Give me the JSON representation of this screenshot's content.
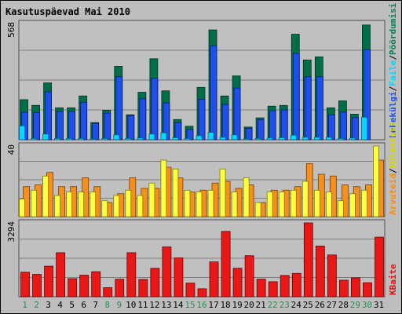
{
  "title": "Kasutuspäevad Mai 2010",
  "colors": {
    "panel_bg": "#c0c0c0",
    "grid": "#808080",
    "title_text": "#0000c0",
    "weekday": "#006400",
    "weekend": "#2e8b57",
    "kulastusi": "#006d4a",
    "lehekulgi": "#1f4fe8",
    "faile": "#00d8ff",
    "poordumisi": "#0b7a5a",
    "kulastajaid": "#f58f1e",
    "kulastajaid_legend": "#ff8c00",
    "kulastajad": "#ffff44",
    "kulastajad_legend": "#d8d800",
    "kbaite": "#e81818",
    "kbaite_legend": "#e01010",
    "separator": "#505050"
  },
  "legend": {
    "panel1": [
      "Lehekülgi",
      "/",
      "Faile",
      "/",
      "Pöördumisi"
    ],
    "panel2": [
      "Arvuteid",
      "/",
      "Külastusi"
    ],
    "panel3": [
      "KBaite"
    ]
  },
  "chart_data": [
    {
      "type": "bar",
      "title": "Kasutuspäevad Mai 2010",
      "ymax_label": "568",
      "ylim": [
        0,
        568
      ],
      "categories": [
        "1",
        "2",
        "3",
        "4",
        "5",
        "6",
        "7",
        "8",
        "9",
        "10",
        "11",
        "12",
        "13",
        "14",
        "15",
        "16",
        "17",
        "18",
        "19",
        "20",
        "21",
        "22",
        "23",
        "24",
        "25",
        "26",
        "27",
        "28",
        "29",
        "30",
        "31"
      ],
      "weekend_days": [
        1,
        2,
        8,
        9,
        15,
        16,
        22,
        23,
        29,
        30
      ],
      "series": [
        {
          "name": "Pöördumisi",
          "values": [
            196,
            168,
            278,
            156,
            156,
            214,
            84,
            144,
            359,
            122,
            232,
            396,
            239,
            99,
            66,
            256,
            537,
            214,
            312,
            62,
            107,
            164,
            168,
            516,
            390,
            405,
            156,
            190,
            125,
            561,
            0
          ]
        },
        {
          "name": "Lehekülgi",
          "values": [
            134,
            132,
            234,
            138,
            138,
            183,
            80,
            130,
            308,
            118,
            200,
            300,
            180,
            84,
            50,
            198,
            460,
            173,
            253,
            56,
            97,
            142,
            146,
            422,
            308,
            308,
            122,
            135,
            108,
            440,
            0
          ]
        },
        {
          "name": "Faile",
          "values": [
            68,
            6,
            28,
            6,
            6,
            6,
            4,
            6,
            24,
            6,
            8,
            28,
            34,
            10,
            6,
            20,
            36,
            12,
            24,
            4,
            6,
            8,
            10,
            22,
            12,
            12,
            12,
            6,
            8,
            110,
            0
          ]
        }
      ]
    },
    {
      "type": "bar",
      "ymax_label": "40",
      "ylim": [
        0,
        40
      ],
      "categories": [
        "1",
        "2",
        "3",
        "4",
        "5",
        "6",
        "7",
        "8",
        "9",
        "10",
        "11",
        "12",
        "13",
        "14",
        "15",
        "16",
        "17",
        "18",
        "19",
        "20",
        "21",
        "22",
        "23",
        "24",
        "25",
        "26",
        "27",
        "28",
        "29",
        "30",
        "31"
      ],
      "series": [
        {
          "name": "Külastusi",
          "values": [
            10,
            15,
            23,
            12,
            14,
            14,
            14,
            9,
            12,
            15,
            12,
            19,
            32,
            27,
            15,
            14,
            15,
            27,
            14,
            22,
            8,
            14,
            14,
            15,
            20,
            15,
            14,
            9,
            13,
            15,
            40
          ]
        },
        {
          "name": "Arvuteid",
          "values": [
            17,
            18,
            25,
            17,
            17,
            22,
            17,
            8,
            13,
            22,
            16,
            16,
            28,
            22,
            14,
            15,
            19,
            20,
            16,
            18,
            8,
            15,
            15,
            17,
            30,
            24,
            23,
            18,
            17,
            18,
            32
          ]
        }
      ]
    },
    {
      "type": "bar",
      "ymax_label": "3294",
      "ylim": [
        0,
        3294
      ],
      "categories": [
        "1",
        "2",
        "3",
        "4",
        "5",
        "6",
        "7",
        "8",
        "9",
        "10",
        "11",
        "12",
        "13",
        "14",
        "15",
        "16",
        "17",
        "18",
        "19",
        "20",
        "21",
        "22",
        "23",
        "24",
        "25",
        "26",
        "27",
        "28",
        "29",
        "30",
        "31"
      ],
      "series": [
        {
          "name": "KBaite",
          "values": [
            1095,
            997,
            1363,
            1965,
            807,
            962,
            1118,
            405,
            782,
            1966,
            773,
            1270,
            2223,
            1733,
            609,
            354,
            1556,
            2916,
            1270,
            1832,
            784,
            669,
            948,
            1042,
            3294,
            2261,
            1865,
            737,
            843,
            627,
            2660
          ]
        }
      ]
    }
  ]
}
